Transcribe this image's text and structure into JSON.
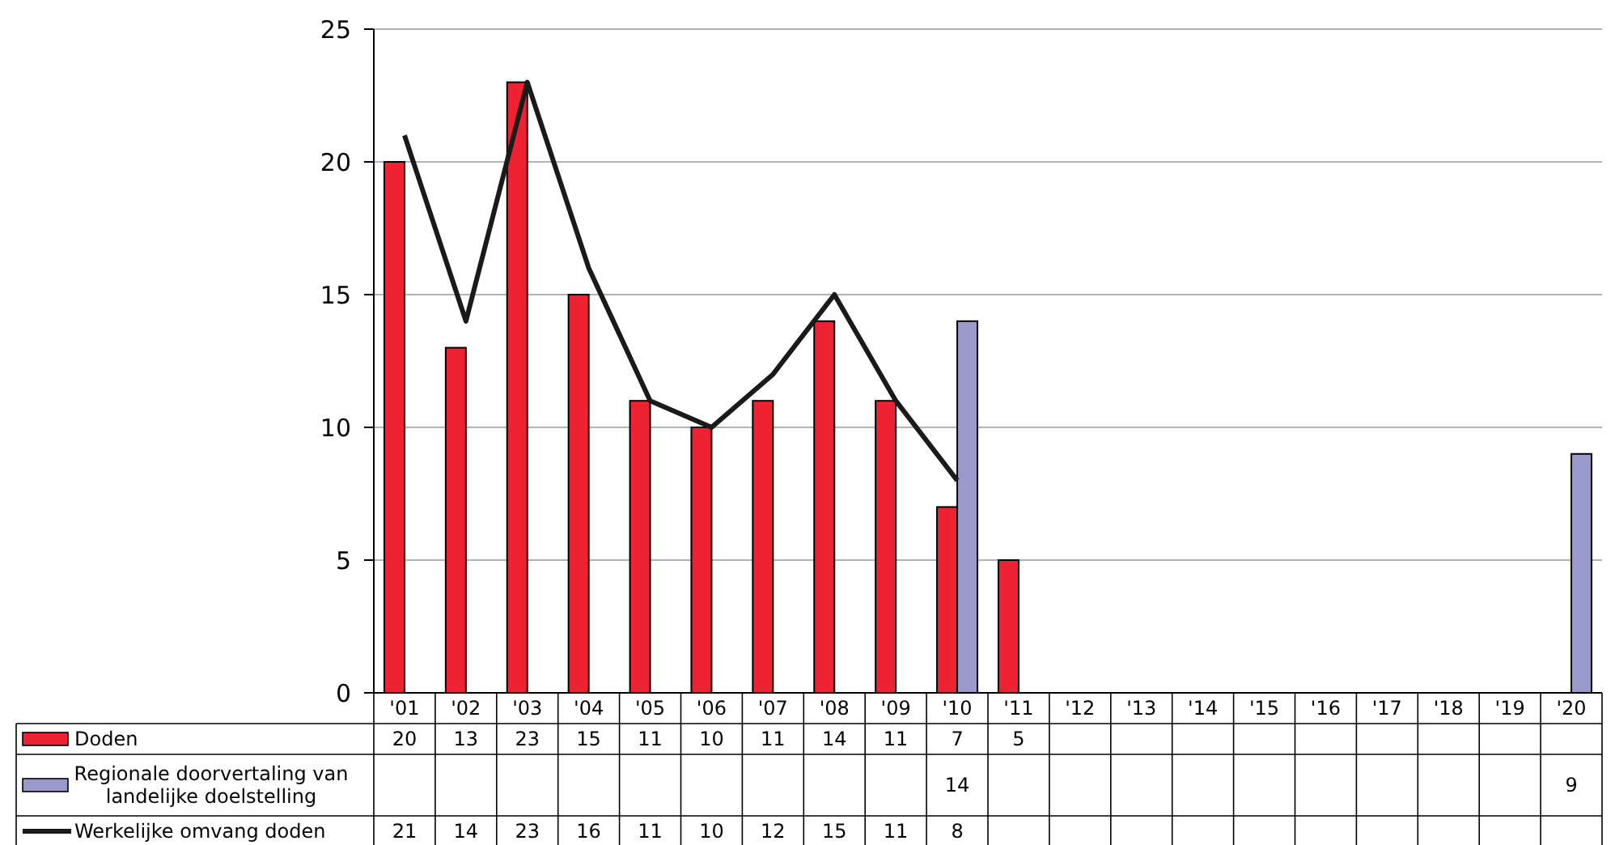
{
  "chart_data": {
    "type": "bar",
    "categories": [
      "'01",
      "'02",
      "'03",
      "'04",
      "'05",
      "'06",
      "'07",
      "'08",
      "'09",
      "'10",
      "'11",
      "'12",
      "'13",
      "'14",
      "'15",
      "'16",
      "'17",
      "'18",
      "'19",
      "'20"
    ],
    "series": [
      {
        "name": "Doden",
        "color": "#ee2233",
        "values": [
          20,
          13,
          23,
          15,
          11,
          10,
          11,
          14,
          11,
          7,
          5,
          null,
          null,
          null,
          null,
          null,
          null,
          null,
          null,
          null
        ]
      },
      {
        "name": "Regionale doorvertaling van landelijke doelstelling",
        "color": "#9999cc",
        "values": [
          null,
          null,
          null,
          null,
          null,
          null,
          null,
          null,
          null,
          14,
          null,
          null,
          null,
          null,
          null,
          null,
          null,
          null,
          null,
          9
        ]
      },
      {
        "name": "Werkelijke omvang doden",
        "type": "line",
        "color": "#1a1a1a",
        "values": [
          21,
          14,
          23,
          16,
          11,
          10,
          12,
          15,
          11,
          8,
          null,
          null,
          null,
          null,
          null,
          null,
          null,
          null,
          null,
          null
        ]
      }
    ],
    "ylim": [
      0,
      25
    ],
    "yticks": [
      0,
      5,
      10,
      15,
      20,
      25
    ],
    "grid": "y",
    "legend": "left",
    "data_labels": true,
    "line_style": "solid"
  }
}
